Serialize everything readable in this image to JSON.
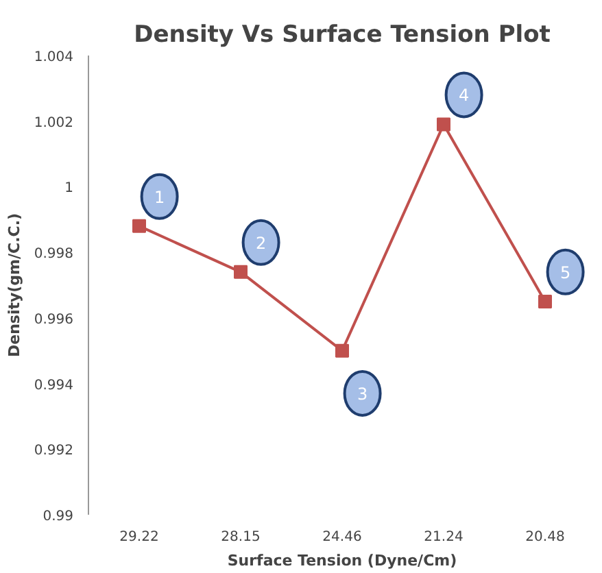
{
  "chart_data": {
    "type": "line",
    "title": "Density Vs Surface Tension Plot",
    "xlabel": "Surface Tension (Dyne/Cm)",
    "ylabel": "Density(gm/C.C.)",
    "categories": [
      "29.22",
      "28.15",
      "24.46",
      "21.24",
      "20.48"
    ],
    "series": [
      {
        "color": "#c0504d",
        "values": [
          0.9988,
          0.9974,
          0.995,
          1.0019,
          0.9965
        ]
      }
    ],
    "marker": "square",
    "line_style": "solid",
    "ylim": [
      0.99,
      1.004
    ],
    "yticks": [
      0.99,
      0.992,
      0.994,
      0.996,
      0.998,
      1,
      1.002,
      1.004
    ],
    "grid": false,
    "annotations": [
      {
        "text": "1",
        "x": "29.22",
        "y": 0.9988
      },
      {
        "text": "2",
        "x": "28.15",
        "y": 0.9974
      },
      {
        "text": "3",
        "x": "24.46",
        "y": 0.995
      },
      {
        "text": "4",
        "x": "21.24",
        "y": 1.0019
      },
      {
        "text": "5",
        "x": "20.48",
        "y": 0.9965
      }
    ]
  }
}
